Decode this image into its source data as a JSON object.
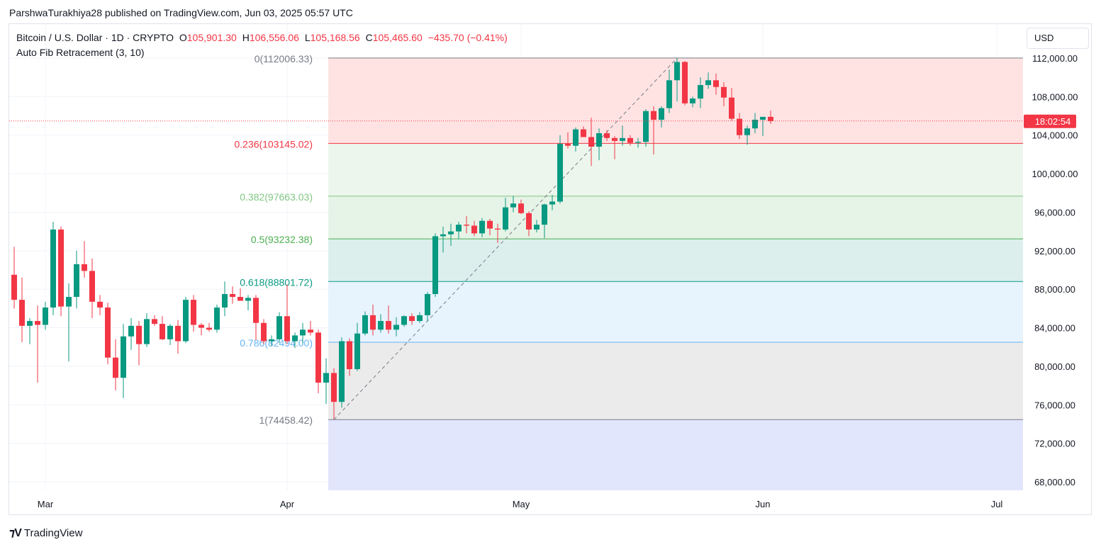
{
  "header": {
    "published": "ParshwaTurakhiya28 published on TradingView.com, Jun 03, 2025 05:57 UTC"
  },
  "legend": {
    "symbol": "Bitcoin / U.S. Dollar · 1D · CRYPTO",
    "open_label": "O",
    "open": "105,901.30",
    "high_label": "H",
    "high": "106,556.06",
    "low_label": "L",
    "low": "105,168.56",
    "close_label": "C",
    "close": "105,465.60",
    "change": "−435.70 (−0.41%)",
    "indicator": "Auto Fib Retracement (3, 10)"
  },
  "currency": "USD",
  "countdown": "18:02:54",
  "brand": "TradingView",
  "colors": {
    "up": "#089981",
    "down": "#f23645"
  },
  "chart_data": {
    "type": "candlestick",
    "title": "Bitcoin / U.S. Dollar · 1D · CRYPTO",
    "ylim": [
      67000,
      113500
    ],
    "y_ticks": [
      {
        "value": 112000,
        "label": "112,000.00"
      },
      {
        "value": 108000,
        "label": "108,000.00"
      },
      {
        "value": 104000,
        "label": "104,000.00"
      },
      {
        "value": 100000,
        "label": "100,000.00"
      },
      {
        "value": 96000,
        "label": "96,000.00"
      },
      {
        "value": 92000,
        "label": "92,000.00"
      },
      {
        "value": 88000,
        "label": "88,000.00"
      },
      {
        "value": 84000,
        "label": "84,000.00"
      },
      {
        "value": 80000,
        "label": "80,000.00"
      },
      {
        "value": 76000,
        "label": "76,000.00"
      },
      {
        "value": 72000,
        "label": "72,000.00"
      },
      {
        "value": 68000,
        "label": "68,000.00"
      }
    ],
    "x_ticks": [
      {
        "day": 0,
        "label": "Mar"
      },
      {
        "day": 31,
        "label": "Apr"
      },
      {
        "day": 61,
        "label": "May"
      },
      {
        "day": 92,
        "label": "Jun"
      },
      {
        "day": 122,
        "label": "Jul"
      }
    ],
    "last_price": 105465.6,
    "grid": true,
    "fib_levels": [
      {
        "ratio": "0",
        "price": 112006.33,
        "label": "0(112006.33)",
        "line": "#787b86",
        "fill": "#ffe3e3",
        "text": "#787b86"
      },
      {
        "ratio": "0.236",
        "price": 103145.02,
        "label": "0.236(103145.02)",
        "line": "#f23645",
        "fill": "#ecf6ec",
        "text": "#f23645"
      },
      {
        "ratio": "0.382",
        "price": 97663.03,
        "label": "0.382(97663.03)",
        "line": "#81c784",
        "fill": "#e6f4e7",
        "text": "#81c784"
      },
      {
        "ratio": "0.5",
        "price": 93232.38,
        "label": "0.5(93232.38)",
        "line": "#4caf50",
        "fill": "#dcefed",
        "text": "#4caf50"
      },
      {
        "ratio": "0.618",
        "price": 88801.72,
        "label": "0.618(88801.72)",
        "line": "#089981",
        "fill": "#e7f3fd",
        "text": "#089981"
      },
      {
        "ratio": "0.786",
        "price": 82494.0,
        "label": "0.786(82494.00)",
        "line": "#64b5f6",
        "fill": "#ebebeb",
        "text": "#64b5f6"
      },
      {
        "ratio": "1",
        "price": 74458.42,
        "label": "1(74458.42)",
        "line": "#787b86",
        "fill": "#e1e6fd",
        "text": "#787b86"
      }
    ],
    "fib_start_day": 37,
    "fib_trend": {
      "from_day": 37,
      "from_price": 74458.42,
      "to_day": 81,
      "to_price": 112006.33
    },
    "candles": [
      [
        -4,
        89500,
        92400,
        86000,
        86900
      ],
      [
        -3,
        86900,
        89200,
        82500,
        84200
      ],
      [
        -2,
        84200,
        85000,
        82300,
        84700
      ],
      [
        -1,
        84700,
        86300,
        78300,
        84300
      ],
      [
        0,
        84300,
        86700,
        83800,
        86100
      ],
      [
        1,
        86100,
        95000,
        85300,
        94200
      ],
      [
        2,
        94200,
        94500,
        85200,
        86200
      ],
      [
        3,
        86200,
        88600,
        80500,
        87200
      ],
      [
        4,
        87200,
        92000,
        86000,
        90600
      ],
      [
        5,
        90600,
        93000,
        89200,
        89900
      ],
      [
        6,
        89900,
        91200,
        85000,
        86700
      ],
      [
        7,
        86700,
        87400,
        85300,
        86100
      ],
      [
        8,
        86100,
        86600,
        80200,
        80900
      ],
      [
        9,
        80900,
        82800,
        77500,
        78800
      ],
      [
        10,
        78800,
        84400,
        76700,
        83100
      ],
      [
        11,
        83100,
        85000,
        81700,
        84200
      ],
      [
        12,
        84200,
        84700,
        80100,
        82300
      ],
      [
        13,
        82300,
        85500,
        82000,
        84900
      ],
      [
        14,
        84900,
        85300,
        84200,
        84400
      ],
      [
        15,
        84400,
        85200,
        82700,
        82800
      ],
      [
        16,
        82800,
        84400,
        82200,
        84200
      ],
      [
        17,
        84200,
        84800,
        81300,
        82600
      ],
      [
        18,
        82600,
        87200,
        82400,
        86900
      ],
      [
        19,
        86900,
        87400,
        83600,
        84300
      ],
      [
        20,
        84300,
        84500,
        83200,
        84000
      ],
      [
        21,
        84000,
        84500,
        83600,
        83800
      ],
      [
        22,
        83800,
        86400,
        83500,
        86100
      ],
      [
        23,
        86100,
        88800,
        85200,
        87500
      ],
      [
        24,
        87500,
        88300,
        86500,
        87200
      ],
      [
        25,
        87200,
        88100,
        86900,
        86800
      ],
      [
        26,
        86800,
        87400,
        85800,
        87100
      ],
      [
        27,
        87100,
        87400,
        82700,
        84500
      ],
      [
        28,
        84500,
        84900,
        82300,
        82600
      ],
      [
        29,
        82600,
        83200,
        82100,
        82800
      ],
      [
        30,
        82800,
        85600,
        82400,
        85200
      ],
      [
        31,
        85200,
        88500,
        82300,
        82600
      ],
      [
        32,
        82600,
        83500,
        81900,
        83200
      ],
      [
        33,
        83200,
        84500,
        82400,
        83800
      ],
      [
        34,
        83800,
        84700,
        83200,
        83500
      ],
      [
        35,
        83500,
        83800,
        77200,
        78300
      ],
      [
        36,
        78300,
        80800,
        76100,
        79300
      ],
      [
        37,
        79300,
        79800,
        74500,
        76300
      ],
      [
        38,
        76300,
        83000,
        75700,
        82600
      ],
      [
        39,
        82600,
        82900,
        79000,
        79700
      ],
      [
        40,
        79700,
        84500,
        79500,
        83400
      ],
      [
        41,
        83400,
        85700,
        83200,
        85300
      ],
      [
        42,
        85300,
        86400,
        83200,
        83800
      ],
      [
        43,
        83800,
        85400,
        83500,
        84700
      ],
      [
        44,
        84700,
        86300,
        83400,
        83800
      ],
      [
        45,
        83800,
        85100,
        83100,
        84300
      ],
      [
        46,
        84300,
        85300,
        84100,
        85200
      ],
      [
        47,
        85200,
        85500,
        84300,
        84700
      ],
      [
        48,
        84700,
        85600,
        84500,
        85300
      ],
      [
        49,
        85300,
        87700,
        84700,
        87500
      ],
      [
        50,
        87500,
        93800,
        87200,
        93500
      ],
      [
        51,
        93500,
        94500,
        91800,
        93700
      ],
      [
        52,
        93700,
        94800,
        92500,
        94000
      ],
      [
        53,
        94000,
        95000,
        93200,
        94700
      ],
      [
        54,
        94700,
        95600,
        93800,
        94600
      ],
      [
        55,
        94600,
        95100,
        93500,
        93800
      ],
      [
        56,
        93800,
        95400,
        93400,
        95100
      ],
      [
        57,
        95100,
        95300,
        93600,
        94300
      ],
      [
        58,
        94300,
        94800,
        92800,
        94200
      ],
      [
        59,
        94200,
        97500,
        94000,
        96500
      ],
      [
        60,
        96500,
        97700,
        96000,
        96900
      ],
      [
        61,
        96900,
        97300,
        95800,
        95900
      ],
      [
        62,
        95900,
        96100,
        93500,
        94200
      ],
      [
        63,
        94200,
        95200,
        93900,
        94700
      ],
      [
        64,
        94700,
        96900,
        93300,
        96800
      ],
      [
        65,
        96800,
        97800,
        96200,
        97100
      ],
      [
        66,
        97100,
        104000,
        96900,
        103100
      ],
      [
        67,
        103100,
        104300,
        102600,
        102900
      ],
      [
        68,
        102900,
        104800,
        102300,
        104600
      ],
      [
        69,
        104600,
        104900,
        103800,
        103800
      ],
      [
        70,
        103800,
        105800,
        100800,
        102800
      ],
      [
        71,
        102800,
        104700,
        101400,
        104200
      ],
      [
        72,
        104200,
        104500,
        103400,
        103700
      ],
      [
        73,
        103700,
        103900,
        101500,
        103400
      ],
      [
        74,
        103400,
        105000,
        102900,
        103700
      ],
      [
        75,
        103700,
        104000,
        102900,
        103200
      ],
      [
        76,
        103200,
        103700,
        102700,
        103300
      ],
      [
        77,
        103300,
        106700,
        102800,
        106500
      ],
      [
        78,
        106500,
        107000,
        102000,
        105600
      ],
      [
        79,
        105600,
        107000,
        104800,
        106800
      ],
      [
        80,
        106800,
        110800,
        106300,
        109700
      ],
      [
        81,
        109700,
        112000,
        107500,
        111600
      ],
      [
        82,
        111600,
        111700,
        107100,
        107300
      ],
      [
        83,
        107300,
        108000,
        106900,
        107800
      ],
      [
        84,
        107800,
        110000,
        106800,
        109200
      ],
      [
        85,
        109200,
        110500,
        108800,
        109700
      ],
      [
        86,
        109700,
        110400,
        108200,
        109000
      ],
      [
        87,
        109000,
        109500,
        107000,
        107900
      ],
      [
        88,
        107900,
        108900,
        105500,
        105700
      ],
      [
        89,
        105700,
        106300,
        103600,
        104000
      ],
      [
        90,
        104000,
        105000,
        103000,
        104700
      ],
      [
        91,
        104700,
        106300,
        104200,
        105600
      ],
      [
        92,
        105600,
        105900,
        103900,
        105900
      ],
      [
        93,
        105901.3,
        106556.06,
        105168.56,
        105465.6
      ]
    ]
  }
}
